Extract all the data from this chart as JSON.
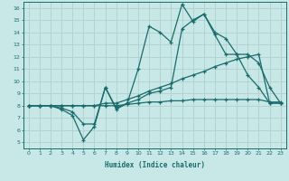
{
  "xlabel": "Humidex (Indice chaleur)",
  "xlim": [
    -0.5,
    23.5
  ],
  "ylim": [
    4.5,
    16.5
  ],
  "yticks": [
    5,
    6,
    7,
    8,
    9,
    10,
    11,
    12,
    13,
    14,
    15,
    16
  ],
  "xticks": [
    0,
    1,
    2,
    3,
    4,
    5,
    6,
    7,
    8,
    9,
    10,
    11,
    12,
    13,
    14,
    15,
    16,
    17,
    18,
    19,
    20,
    21,
    22,
    23
  ],
  "bg_color": "#c8e8e8",
  "grid_color": "#b0d0d0",
  "line_color": "#1a6b6b",
  "lines": [
    {
      "x": [
        0,
        1,
        2,
        3,
        4,
        5,
        6,
        7,
        8,
        9,
        10,
        11,
        12,
        13,
        14,
        15,
        16,
        17,
        18,
        19,
        20,
        21,
        22,
        23
      ],
      "y": [
        8,
        8,
        8,
        7.7,
        7.2,
        5.2,
        6.3,
        9.5,
        7.7,
        8.2,
        11.0,
        14.5,
        14.0,
        13.2,
        16.3,
        14.9,
        15.5,
        13.8,
        12.2,
        12.2,
        12.2,
        11.5,
        9.5,
        8.2
      ]
    },
    {
      "x": [
        0,
        1,
        2,
        3,
        4,
        5,
        6,
        7,
        8,
        9,
        10,
        11,
        12,
        13,
        14,
        15,
        16,
        17,
        18,
        19,
        20,
        21,
        22,
        23
      ],
      "y": [
        8,
        8,
        8,
        7.8,
        7.5,
        6.5,
        6.5,
        9.5,
        7.8,
        8.2,
        8.5,
        9.0,
        9.2,
        9.5,
        14.3,
        15.0,
        15.5,
        14.0,
        13.5,
        12.2,
        10.5,
        9.5,
        8.2,
        8.2
      ]
    },
    {
      "x": [
        0,
        1,
        2,
        3,
        4,
        5,
        6,
        7,
        8,
        9,
        10,
        11,
        12,
        13,
        14,
        15,
        16,
        17,
        18,
        19,
        20,
        21,
        22,
        23
      ],
      "y": [
        8,
        8,
        8,
        8.0,
        8.0,
        8.0,
        8.0,
        8.2,
        8.2,
        8.5,
        8.8,
        9.2,
        9.5,
        9.8,
        10.2,
        10.5,
        10.8,
        11.2,
        11.5,
        11.8,
        12.0,
        12.2,
        8.2,
        8.2
      ]
    },
    {
      "x": [
        0,
        1,
        2,
        3,
        4,
        5,
        6,
        7,
        8,
        9,
        10,
        11,
        12,
        13,
        14,
        15,
        16,
        17,
        18,
        19,
        20,
        21,
        22,
        23
      ],
      "y": [
        8,
        8,
        8,
        8.0,
        8.0,
        8.0,
        8.0,
        8.0,
        8.0,
        8.1,
        8.2,
        8.3,
        8.3,
        8.4,
        8.4,
        8.5,
        8.5,
        8.5,
        8.5,
        8.5,
        8.5,
        8.5,
        8.3,
        8.3
      ]
    }
  ]
}
